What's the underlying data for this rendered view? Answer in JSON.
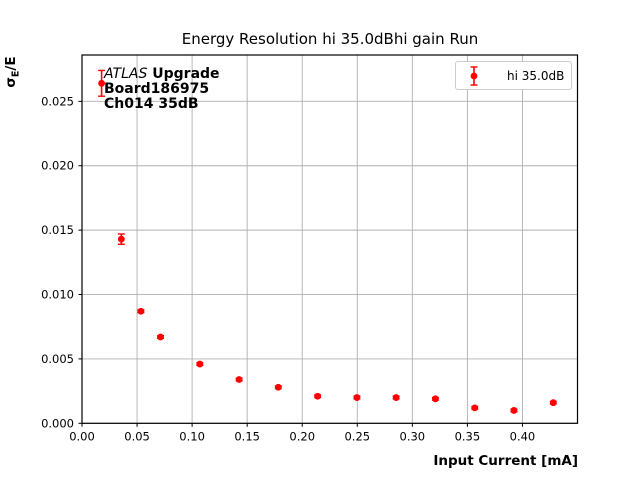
{
  "figure": {
    "title": "Energy Resolution hi 35.0dBhi gain Run",
    "xlabel": "Input Current [mA]",
    "ylabel_sigma": "σ",
    "ylabel_sub": "E",
    "ylabel_rest": "/E",
    "annotation": {
      "atlas": "ATLAS",
      "line1_rest": " Upgrade",
      "line2": "Board186975",
      "line3": "Ch014 35dB"
    },
    "legend_label": "hi 35.0dB"
  },
  "colors": {
    "series": "#ff0000",
    "grid": "#b0b0b0",
    "axis": "#000000",
    "legend_border": "#cccccc",
    "text": "#000000"
  },
  "chart_data": {
    "type": "scatter",
    "title": "Energy Resolution hi 35.0dBhi gain Run",
    "xlabel": "Input Current [mA]",
    "ylabel": "sigma_E/E",
    "grid": true,
    "legend_position": "upper right",
    "legend_entries": [
      "hi 35.0dB"
    ],
    "xlim": [
      0.0,
      0.45
    ],
    "ylim": [
      0.0,
      0.0286
    ],
    "xticks": {
      "values": [
        0.0,
        0.05,
        0.1,
        0.15,
        0.2,
        0.25,
        0.3,
        0.35,
        0.4
      ],
      "labels": [
        "0.00",
        "0.05",
        "0.10",
        "0.15",
        "0.20",
        "0.25",
        "0.30",
        "0.35",
        "0.40"
      ]
    },
    "yticks": {
      "values": [
        0.0,
        0.005,
        0.01,
        0.015,
        0.02,
        0.025
      ],
      "labels": [
        "0.000",
        "0.005",
        "0.010",
        "0.015",
        "0.020",
        "0.025"
      ]
    },
    "series": [
      {
        "name": "hi 35.0dB",
        "color": "#ff0000",
        "marker": "o",
        "points": [
          {
            "x": 0.0178,
            "y": 0.0264,
            "yerr": 0.001
          },
          {
            "x": 0.0357,
            "y": 0.0143,
            "yerr": 0.0004
          },
          {
            "x": 0.0535,
            "y": 0.0087,
            "yerr": 0.0001
          },
          {
            "x": 0.0713,
            "y": 0.0067,
            "yerr": 0.0001
          },
          {
            "x": 0.107,
            "y": 0.0046,
            "yerr": 0.0001
          },
          {
            "x": 0.1427,
            "y": 0.0034,
            "yerr": 0.0001
          },
          {
            "x": 0.1783,
            "y": 0.0028,
            "yerr": 0.0001
          },
          {
            "x": 0.214,
            "y": 0.0021,
            "yerr": 0.0001
          },
          {
            "x": 0.2497,
            "y": 0.002,
            "yerr": 0.0001
          },
          {
            "x": 0.2853,
            "y": 0.002,
            "yerr": 0.0001
          },
          {
            "x": 0.321,
            "y": 0.0019,
            "yerr": 0.0001
          },
          {
            "x": 0.3567,
            "y": 0.0012,
            "yerr": 0.0001
          },
          {
            "x": 0.3923,
            "y": 0.001,
            "yerr": 0.0001
          },
          {
            "x": 0.428,
            "y": 0.0016,
            "yerr": 0.0001
          }
        ]
      }
    ]
  }
}
